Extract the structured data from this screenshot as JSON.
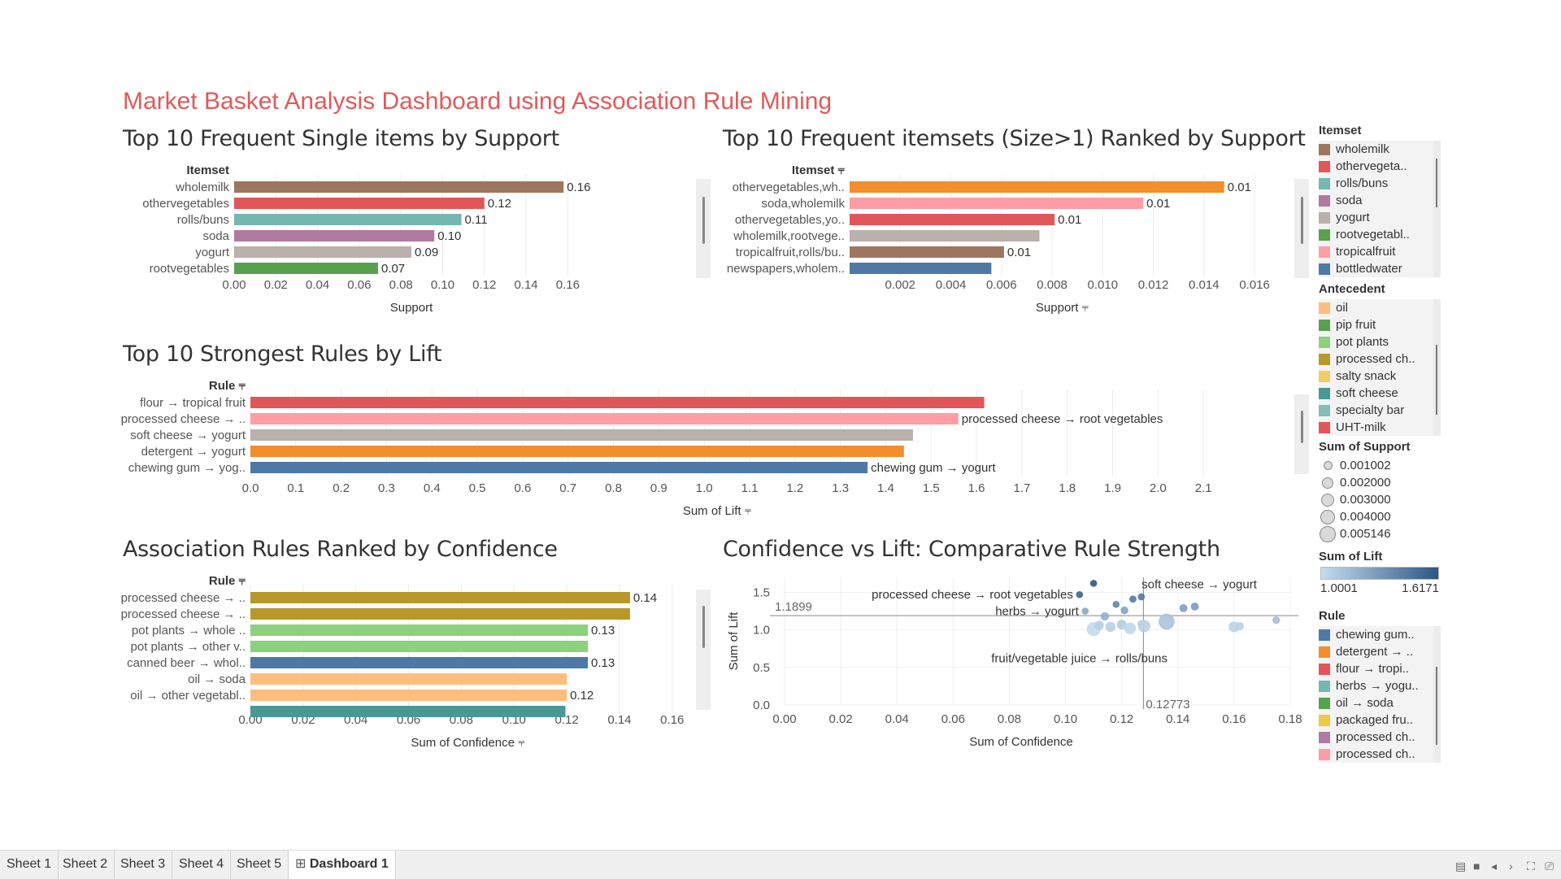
{
  "dashboard_title": "Market Basket Analysis Dashboard using Association Rule Mining",
  "panels": {
    "single": "Top 10 Frequent Single items by Support",
    "itemsets": "Top 10 Frequent itemsets (Size>1) Ranked by Support",
    "lift": "Top 10 Strongest Rules by Lift",
    "confidence": "Association Rules Ranked by Confidence",
    "scatter": "Confidence vs Lift: Comparative Rule Strength"
  },
  "chart_data": [
    {
      "id": "single",
      "type": "bar",
      "orientation": "horizontal",
      "dim_label": "Itemset",
      "xlabel": "Support",
      "categories": [
        "wholemilk",
        "othervegetables",
        "rolls/buns",
        "soda",
        "yogurt",
        "rootvegetables"
      ],
      "values": [
        0.158,
        0.12,
        0.109,
        0.096,
        0.085,
        0.069
      ],
      "labels": [
        "0.16",
        "0.12",
        "0.11",
        "0.10",
        "0.09",
        "0.07"
      ],
      "colors": [
        "#9d7660",
        "#e15759",
        "#76b7b2",
        "#b07aa1",
        "#bab0ac",
        "#59a14f"
      ],
      "ticks": [
        "0.00",
        "0.02",
        "0.04",
        "0.06",
        "0.08",
        "0.10",
        "0.12",
        "0.14",
        "0.16"
      ],
      "xlim": [
        0,
        0.17
      ]
    },
    {
      "id": "itemsets",
      "type": "bar",
      "orientation": "horizontal",
      "dim_label": "Itemset",
      "xlabel": "Support",
      "categories": [
        "othervegetables,wh..",
        "soda,wholemilk",
        "othervegetables,yo..",
        "wholemilk,rootvege..",
        "tropicalfruit,rolls/bu..",
        "newspapers,wholem.."
      ],
      "values": [
        0.0148,
        0.0116,
        0.0081,
        0.0075,
        0.0061,
        0.0056
      ],
      "labels": [
        "0.01",
        "0.01",
        "0.01",
        "",
        "0.01",
        ""
      ],
      "colors": [
        "#f28e2b",
        "#ff9da7",
        "#e15759",
        "#bab0ac",
        "#9d7660",
        "#4e79a7"
      ],
      "ticks": [
        "0.002",
        "0.004",
        "0.006",
        "0.008",
        "0.010",
        "0.012",
        "0.014",
        "0.016"
      ],
      "xlim": [
        0,
        0.0168
      ]
    },
    {
      "id": "lift",
      "type": "bar",
      "orientation": "horizontal",
      "dim_label": "Rule",
      "xlabel": "Sum of Lift",
      "categories": [
        "flour → tropical fruit",
        "processed cheese → ..",
        "soft cheese → yogurt",
        "detergent → yogurt",
        "chewing gum → yog.."
      ],
      "values": [
        1.6171,
        1.56,
        1.46,
        1.44,
        1.36
      ],
      "labels": [
        "",
        "processed cheese → root vegetables",
        "",
        "",
        "chewing gum → yogurt"
      ],
      "colors": [
        "#e15759",
        "#ff9da7",
        "#bab0ac",
        "#f28e2b",
        "#4e79a7"
      ],
      "ticks": [
        "0.0",
        "0.1",
        "0.2",
        "0.3",
        "0.4",
        "0.5",
        "0.6",
        "0.7",
        "0.8",
        "0.9",
        "1.0",
        "1.1",
        "1.2",
        "1.3",
        "1.4",
        "1.5",
        "1.6",
        "1.7",
        "1.8",
        "1.9",
        "2.0",
        "2.1"
      ],
      "xlim": [
        0,
        2.2
      ]
    },
    {
      "id": "confidence",
      "type": "bar",
      "orientation": "horizontal",
      "dim_label": "Rule",
      "xlabel": "Sum of Confidence",
      "categories": [
        "processed cheese → ..",
        "processed cheese → ..",
        "pot plants → whole ..",
        "pot plants → other v..",
        "canned beer → whol..",
        "oil → soda",
        "oil → other vegetabl..",
        ""
      ],
      "values": [
        0.144,
        0.144,
        0.128,
        0.128,
        0.128,
        0.12,
        0.12,
        0.1195
      ],
      "labels": [
        "0.14",
        "",
        "0.13",
        "",
        "0.13",
        "",
        "0.12",
        ""
      ],
      "colors": [
        "#b9972a",
        "#b9972a",
        "#8cd17d",
        "#8cd17d",
        "#4e79a7",
        "#ffbe7d",
        "#ffbe7d",
        "#499894"
      ],
      "ticks": [
        "0.00",
        "0.02",
        "0.04",
        "0.06",
        "0.08",
        "0.10",
        "0.12",
        "0.14",
        "0.16"
      ],
      "xlim": [
        0,
        0.165
      ]
    },
    {
      "id": "scatter",
      "type": "scatter",
      "xlabel": "Sum of Confidence",
      "ylabel": "Sum of Lift",
      "xlim": [
        0,
        0.18
      ],
      "ylim": [
        0,
        1.7
      ],
      "xticks": [
        "0.00",
        "0.02",
        "0.04",
        "0.06",
        "0.08",
        "0.10",
        "0.12",
        "0.14",
        "0.16",
        "0.18"
      ],
      "yticks": [
        "0.0",
        "0.5",
        "1.0",
        "1.5"
      ],
      "ref_lines": {
        "y_label": "1.1899",
        "x_label": "0.12773",
        "y": 1.1899,
        "x": 0.12773
      },
      "points": [
        {
          "x": 0.105,
          "y": 1.47,
          "support": 0.0012,
          "lift": 1.56
        },
        {
          "x": 0.11,
          "y": 1.62,
          "support": 0.0012,
          "lift": 1.6171
        },
        {
          "x": 0.118,
          "y": 1.34,
          "support": 0.0012,
          "lift": 1.4
        },
        {
          "x": 0.124,
          "y": 1.41,
          "support": 0.0013,
          "lift": 1.45
        },
        {
          "x": 0.127,
          "y": 1.44,
          "support": 0.0013,
          "lift": 1.46
        },
        {
          "x": 0.107,
          "y": 1.25,
          "support": 0.0012,
          "lift": 1.25
        },
        {
          "x": 0.114,
          "y": 1.18,
          "support": 0.0018,
          "lift": 1.2
        },
        {
          "x": 0.121,
          "y": 1.26,
          "support": 0.0015,
          "lift": 1.26
        },
        {
          "x": 0.142,
          "y": 1.29,
          "support": 0.0016,
          "lift": 1.28
        },
        {
          "x": 0.146,
          "y": 1.31,
          "support": 0.0016,
          "lift": 1.3
        },
        {
          "x": 0.11,
          "y": 1.01,
          "support": 0.0042,
          "lift": 1.01
        },
        {
          "x": 0.112,
          "y": 1.06,
          "support": 0.0022,
          "lift": 1.06
        },
        {
          "x": 0.116,
          "y": 1.04,
          "support": 0.0026,
          "lift": 1.05
        },
        {
          "x": 0.12,
          "y": 1.07,
          "support": 0.0024,
          "lift": 1.07
        },
        {
          "x": 0.123,
          "y": 1.02,
          "support": 0.0032,
          "lift": 1.02
        },
        {
          "x": 0.127,
          "y": 1.08,
          "support": 0.0014,
          "lift": 1.08
        },
        {
          "x": 0.128,
          "y": 1.05,
          "support": 0.0035,
          "lift": 1.05
        },
        {
          "x": 0.136,
          "y": 1.11,
          "support": 0.0051,
          "lift": 1.11
        },
        {
          "x": 0.16,
          "y": 1.04,
          "support": 0.0028,
          "lift": 1.04
        },
        {
          "x": 0.162,
          "y": 1.05,
          "support": 0.0018,
          "lift": 1.05
        },
        {
          "x": 0.175,
          "y": 1.13,
          "support": 0.0015,
          "lift": 1.13
        }
      ],
      "annotations": [
        {
          "text": "processed cheese → root vegetables",
          "x": 0.105,
          "y": 1.47,
          "anchor": "end"
        },
        {
          "text": "soft cheese → yogurt",
          "x": 0.1265,
          "y": 1.61,
          "anchor": "start"
        },
        {
          "text": "herbs → yogurt",
          "x": 0.107,
          "y": 1.25,
          "anchor": "end"
        },
        {
          "text": "fruit/vegetable juice → rolls/buns",
          "x": 0.073,
          "y": 0.62,
          "anchor": "start"
        }
      ]
    }
  ],
  "legends": {
    "itemset": {
      "title": "Itemset",
      "items": [
        {
          "label": "wholemilk",
          "color": "#9d7660"
        },
        {
          "label": "othervegeta..",
          "color": "#e15759"
        },
        {
          "label": "rolls/buns",
          "color": "#76b7b2"
        },
        {
          "label": "soda",
          "color": "#b07aa1"
        },
        {
          "label": "yogurt",
          "color": "#bab0ac"
        },
        {
          "label": "rootvegetabl..",
          "color": "#59a14f"
        },
        {
          "label": "tropicalfruit",
          "color": "#ff9da7"
        },
        {
          "label": "bottledwater",
          "color": "#4e79a7"
        }
      ]
    },
    "antecedent": {
      "title": "Antecedent",
      "items": [
        {
          "label": "oil",
          "color": "#ffbe7d"
        },
        {
          "label": "pip fruit",
          "color": "#59a14f"
        },
        {
          "label": "pot plants",
          "color": "#8cd17d"
        },
        {
          "label": "processed ch..",
          "color": "#b6992d"
        },
        {
          "label": "salty snack",
          "color": "#f1ce63"
        },
        {
          "label": "soft cheese",
          "color": "#499894"
        },
        {
          "label": "specialty bar",
          "color": "#86bcb6"
        },
        {
          "label": "UHT-milk",
          "color": "#e15759"
        }
      ]
    },
    "support": {
      "title": "Sum of Support",
      "items": [
        "0.001002",
        "0.002000",
        "0.003000",
        "0.004000",
        "0.005146"
      ]
    },
    "lift": {
      "title": "Sum of Lift",
      "min": "1.0001",
      "max": "1.6171",
      "color_low": "#c6dbef",
      "color_high": "#2a5783"
    },
    "rule": {
      "title": "Rule",
      "items": [
        {
          "label": "chewing gum..",
          "color": "#4e79a7"
        },
        {
          "label": "detergent → ..",
          "color": "#f28e2b"
        },
        {
          "label": "flour → tropi..",
          "color": "#e15759"
        },
        {
          "label": "herbs → yogu..",
          "color": "#76b7b2"
        },
        {
          "label": "oil → soda",
          "color": "#59a14f"
        },
        {
          "label": "packaged fru..",
          "color": "#edc948"
        },
        {
          "label": "processed ch..",
          "color": "#b07aa1"
        },
        {
          "label": "processed ch..",
          "color": "#ff9da7"
        }
      ]
    }
  },
  "tabs": [
    "Sheet 1",
    "Sheet 2",
    "Sheet 3",
    "Sheet 4",
    "Sheet 5",
    "Dashboard 1"
  ],
  "active_tab": "Dashboard 1"
}
